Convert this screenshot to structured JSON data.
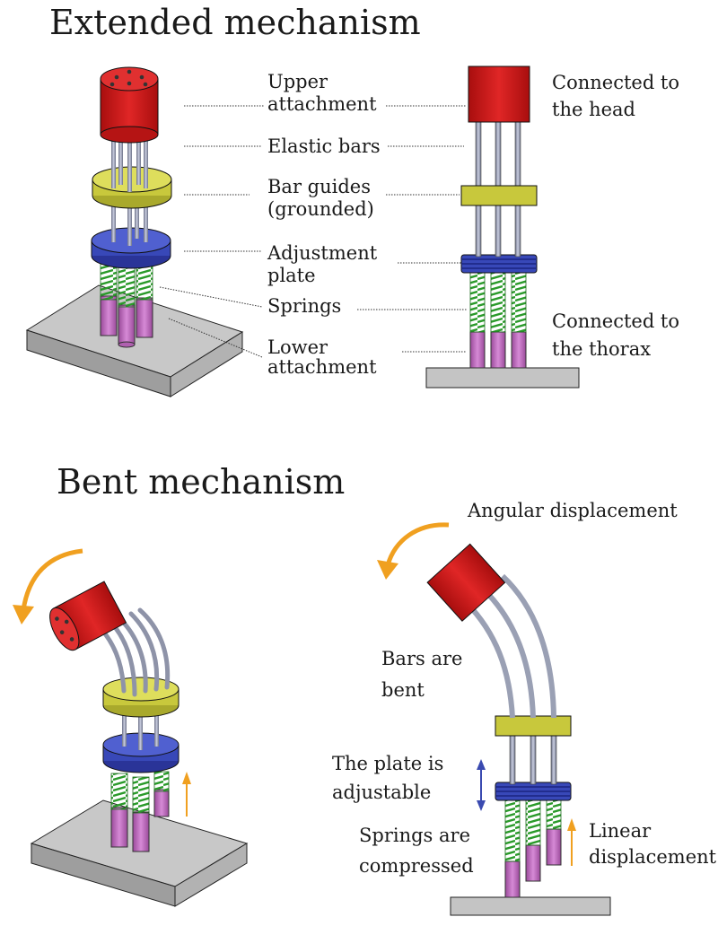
{
  "sections": {
    "extended": {
      "title": "Extended mechanism",
      "labels": {
        "upper_1": "Upper",
        "upper_2": "attachment",
        "elastic": "Elastic bars",
        "guides_1": "Bar guides",
        "guides_2": "(grounded)",
        "adjust_1": "Adjustment",
        "adjust_2": "plate",
        "springs": "Springs",
        "lower_1": "Lower",
        "lower_2": "attachment",
        "head_1": "Connected to",
        "head_2": "the head",
        "thorax_1": "Connected to",
        "thorax_2": "the thorax"
      }
    },
    "bent": {
      "title": "Bent mechanism",
      "labels": {
        "angular": "Angular displacement",
        "bars_1": "Bars are",
        "bars_2": "bent",
        "plate_1": "The plate is",
        "plate_2": "adjustable",
        "springs_1": "Springs are",
        "springs_2": "compressed",
        "linear_1": "Linear",
        "linear_2": "displacement"
      }
    }
  },
  "colors": {
    "head": "#d01818",
    "guide": "#c8c83c",
    "plate": "#3848b8",
    "spring": "#2a9a2a",
    "lower": "#c070c0",
    "base": "#c4c4c4",
    "bar": "#9aa0b4",
    "arrow_orange": "#f0a020",
    "arrow_blue": "#3a4ab0"
  }
}
